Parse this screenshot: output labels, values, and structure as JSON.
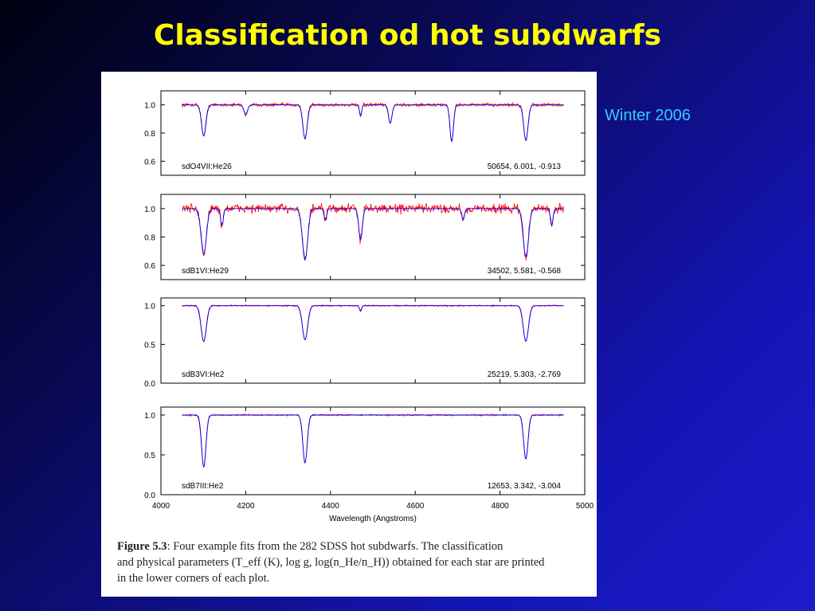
{
  "slide": {
    "title": "Classification od hot subdwarfs",
    "subtitle": "Winter 2006"
  },
  "figure": {
    "caption_lead": "Figure 5.3",
    "caption_lines": [
      ": Four example fits from the 282 SDSS hot subdwarfs.  The classification",
      "and physical parameters (T_eff (K), log g, log(n_He/n_H)) obtained for each star are printed",
      "in the lower corners of each plot."
    ]
  },
  "colors": {
    "background": "#1010a0",
    "title": "#ffff00",
    "subtitle": "#33ccff",
    "observed": "#ff0000",
    "model": "#0000ff"
  },
  "chart_data": {
    "type": "line",
    "xlabel": "Wavelength (Angstroms)",
    "xlim": [
      4000,
      5000
    ],
    "xticks": [
      4000,
      4200,
      4400,
      4600,
      4800,
      5000
    ],
    "x_data_range": [
      4050,
      4950
    ],
    "panels": [
      {
        "class_label": "sdO4VII:He26",
        "params_label": "50654, 6.001, -0.913",
        "ylim": [
          0.5,
          1.1
        ],
        "yticks": [
          0.6,
          0.8,
          1.0
        ],
        "noise": 0.015,
        "lines": [
          {
            "center": 4101,
            "depth": 0.22,
            "width": 5
          },
          {
            "center": 4200,
            "depth": 0.07,
            "width": 4
          },
          {
            "center": 4340,
            "depth": 0.24,
            "width": 5
          },
          {
            "center": 4471,
            "depth": 0.08,
            "width": 2.5
          },
          {
            "center": 4541,
            "depth": 0.13,
            "width": 4
          },
          {
            "center": 4686,
            "depth": 0.26,
            "width": 4
          },
          {
            "center": 4861,
            "depth": 0.25,
            "width": 5
          }
        ]
      },
      {
        "class_label": "sdB1VI:He29",
        "params_label": "34502, 5.581, -0.568",
        "ylim": [
          0.5,
          1.1
        ],
        "yticks": [
          0.6,
          0.8,
          1.0
        ],
        "noise": 0.04,
        "lines": [
          {
            "center": 4101,
            "depth": 0.32,
            "width": 6
          },
          {
            "center": 4144,
            "depth": 0.12,
            "width": 3
          },
          {
            "center": 4340,
            "depth": 0.36,
            "width": 6
          },
          {
            "center": 4388,
            "depth": 0.08,
            "width": 3
          },
          {
            "center": 4471,
            "depth": 0.22,
            "width": 4
          },
          {
            "center": 4713,
            "depth": 0.08,
            "width": 3
          },
          {
            "center": 4861,
            "depth": 0.34,
            "width": 6
          },
          {
            "center": 4922,
            "depth": 0.12,
            "width": 3
          }
        ]
      },
      {
        "class_label": "sdB3VI:He2",
        "params_label": "25219, 5.303, -2.769",
        "ylim": [
          0.0,
          1.1
        ],
        "yticks": [
          0.0,
          0.5,
          1.0
        ],
        "noise": 0.012,
        "lines": [
          {
            "center": 4101,
            "depth": 0.46,
            "width": 6
          },
          {
            "center": 4340,
            "depth": 0.44,
            "width": 6
          },
          {
            "center": 4471,
            "depth": 0.07,
            "width": 2.5
          },
          {
            "center": 4861,
            "depth": 0.46,
            "width": 6
          }
        ]
      },
      {
        "class_label": "sdB7III:He2",
        "params_label": "12653, 3.342, -3.004",
        "ylim": [
          0.0,
          1.1
        ],
        "yticks": [
          0.0,
          0.5,
          1.0
        ],
        "noise": 0.012,
        "lines": [
          {
            "center": 4101,
            "depth": 0.65,
            "width": 5
          },
          {
            "center": 4340,
            "depth": 0.6,
            "width": 5
          },
          {
            "center": 4861,
            "depth": 0.55,
            "width": 5
          }
        ]
      }
    ]
  }
}
